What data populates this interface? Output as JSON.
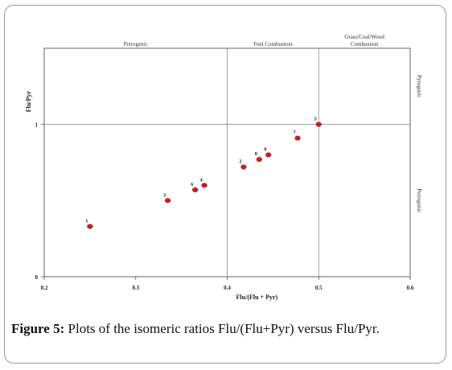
{
  "chart_data": {
    "type": "scatter",
    "xlabel": "Flu/(Flu + Pyr)",
    "ylabel": "Flu/Pyr",
    "xlim": [
      0.2,
      0.6
    ],
    "ylim": [
      0,
      1.5
    ],
    "x_ticks": [
      {
        "value": 0.2,
        "label": "0.2"
      },
      {
        "value": 0.3,
        "label": "0.3"
      },
      {
        "value": 0.4,
        "label": "0.4"
      },
      {
        "value": 0.5,
        "label": "0.5"
      },
      {
        "value": 0.6,
        "label": "0.6"
      }
    ],
    "y_ticks": [
      {
        "value": 0,
        "label": "0"
      },
      {
        "value": 1,
        "label": "1"
      }
    ],
    "x_thresholds": [
      0.4,
      0.5
    ],
    "y_thresholds": [
      1
    ],
    "regions_x": [
      {
        "from": 0.2,
        "to": 0.4,
        "label_lines": [
          "Petrogenic"
        ]
      },
      {
        "from": 0.4,
        "to": 0.5,
        "label_lines": [
          "Fuel Combustion"
        ]
      },
      {
        "from": 0.5,
        "to": 0.6,
        "label_lines": [
          "Grass/Coal/Wood",
          "Combustion"
        ]
      }
    ],
    "regions_y": [
      {
        "from": 1,
        "to": 1.5,
        "label": "Pyrogenic"
      },
      {
        "from": 0,
        "to": 1,
        "label": "Petrogenic"
      }
    ],
    "points": [
      {
        "label": "1",
        "x": 0.25,
        "y": 0.33
      },
      {
        "label": "2",
        "x": 0.418,
        "y": 0.72
      },
      {
        "label": "3",
        "x": 0.335,
        "y": 0.5
      },
      {
        "label": "4",
        "x": 0.375,
        "y": 0.6
      },
      {
        "label": "5",
        "x": 0.5,
        "y": 1.0
      },
      {
        "label": "6",
        "x": 0.365,
        "y": 0.57
      },
      {
        "label": "7",
        "x": 0.477,
        "y": 0.91
      },
      {
        "label": "8",
        "x": 0.435,
        "y": 0.77
      },
      {
        "label": "9",
        "x": 0.445,
        "y": 0.8
      }
    ],
    "grid": false,
    "marker_color": "#cc1f1f"
  },
  "caption": {
    "label": "Figure 5:",
    "text": " Plots of the isomeric ratios Flu/(Flu+Pyr) versus Flu/Pyr."
  }
}
